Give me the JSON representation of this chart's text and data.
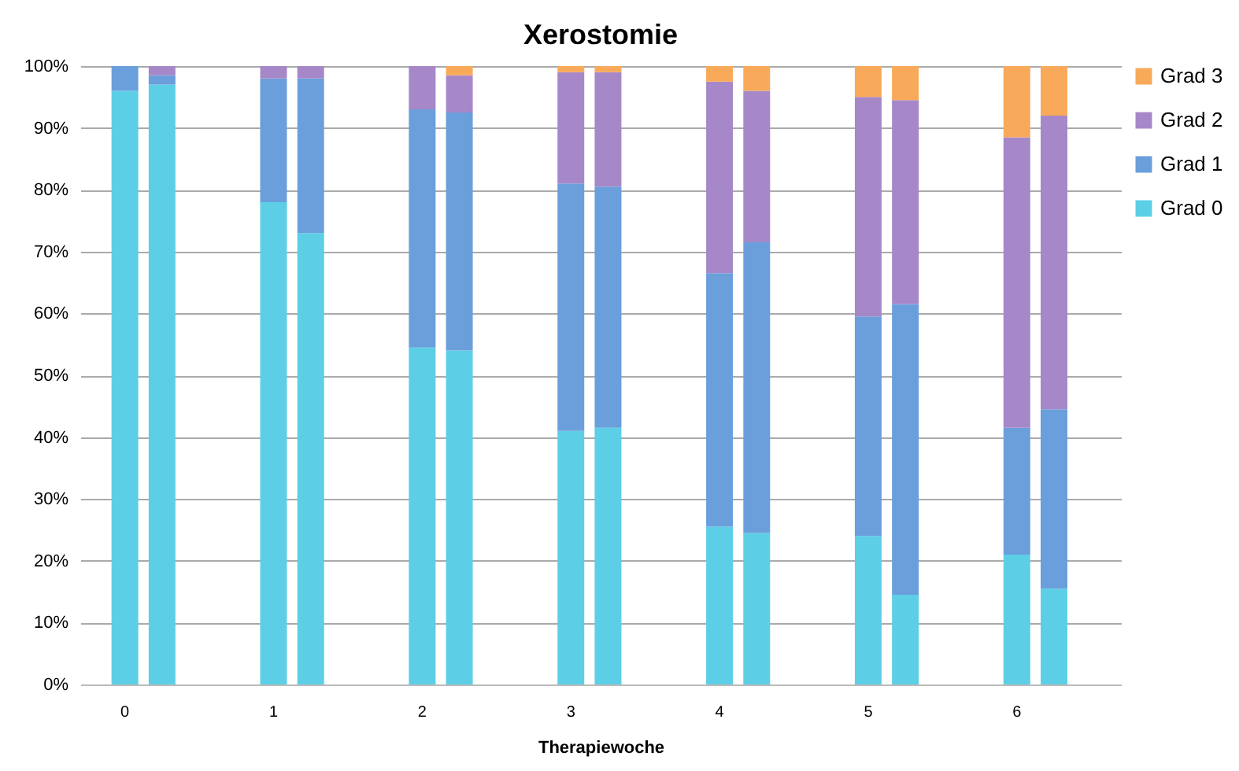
{
  "chart_data": {
    "type": "bar",
    "stacked": true,
    "title": "Xerostomie",
    "xlabel": "Therapiewoche",
    "categories": [
      "0",
      null,
      null,
      null,
      "1",
      null,
      null,
      null,
      "2",
      null,
      null,
      null,
      "3",
      null,
      null,
      null,
      "4",
      null,
      null,
      null,
      "5",
      null,
      null,
      null,
      "6",
      null
    ],
    "series": [
      {
        "name": "Grad 0",
        "color": "#5ccfe6",
        "values": [
          96,
          97,
          null,
          null,
          78,
          73,
          null,
          null,
          54.5,
          54,
          null,
          null,
          41,
          41.5,
          null,
          null,
          25.5,
          24.5,
          null,
          null,
          24,
          14.5,
          null,
          null,
          21,
          15.5
        ]
      },
      {
        "name": "Grad 1",
        "color": "#6a9fdc",
        "values": [
          4,
          1.5,
          null,
          null,
          20,
          25,
          null,
          null,
          38.5,
          38.5,
          null,
          null,
          40,
          39,
          null,
          null,
          41,
          47,
          null,
          null,
          35.5,
          47,
          null,
          null,
          20.5,
          29
        ]
      },
      {
        "name": "Grad 2",
        "color": "#a688c8",
        "values": [
          0,
          1.5,
          null,
          null,
          2,
          2,
          null,
          null,
          7,
          6,
          null,
          null,
          18,
          18.5,
          null,
          null,
          31,
          24.5,
          null,
          null,
          35.5,
          33,
          null,
          null,
          47,
          47.5
        ]
      },
      {
        "name": "Grad 3",
        "color": "#f9a95a",
        "values": [
          0,
          0,
          null,
          null,
          0,
          0,
          null,
          null,
          0,
          1.5,
          null,
          null,
          1,
          1,
          null,
          null,
          2.5,
          4,
          null,
          null,
          5,
          5.5,
          null,
          null,
          11.5,
          8
        ]
      }
    ],
    "ylim": [
      0,
      100
    ],
    "yticks": [
      {
        "value": 0,
        "label": "0%"
      },
      {
        "value": 10,
        "label": "10%"
      },
      {
        "value": 20,
        "label": "20%"
      },
      {
        "value": 30,
        "label": "30%"
      },
      {
        "value": 40,
        "label": "40%"
      },
      {
        "value": 50,
        "label": "50%"
      },
      {
        "value": 60,
        "label": "60%"
      },
      {
        "value": 70,
        "label": "70%"
      },
      {
        "value": 80,
        "label": "80%"
      },
      {
        "value": 90,
        "label": "90%"
      },
      {
        "value": 100,
        "label": "100%"
      }
    ],
    "grid": "y",
    "legend": "right"
  }
}
